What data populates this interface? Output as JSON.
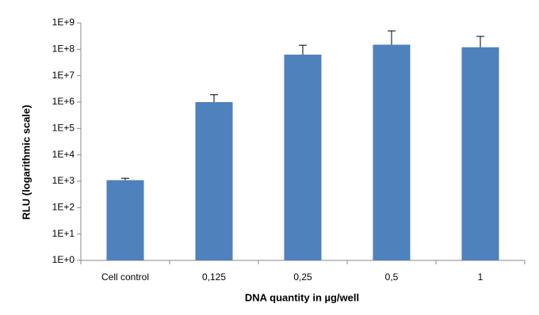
{
  "chart_data": {
    "type": "bar",
    "x_label": "DNA quantity in µg/well",
    "y_label": "RLU (logarithmic scale)",
    "categories": [
      "Cell control",
      "0,125",
      "0,25",
      "0,5",
      "1"
    ],
    "values": [
      1100,
      1000000,
      63000000,
      150000000,
      120000000
    ],
    "errors": [
      200,
      900000,
      80000000,
      350000000,
      190000000
    ],
    "color": "#4f81bd",
    "log_scale": true,
    "grid": false,
    "ylim": [
      1,
      1000000000
    ],
    "yticks": [
      {
        "value": 1,
        "label": "1E+0"
      },
      {
        "value": 10,
        "label": "1E+1"
      },
      {
        "value": 100,
        "label": "1E+2"
      },
      {
        "value": 1000,
        "label": "1E+3"
      },
      {
        "value": 10000,
        "label": "1E+4"
      },
      {
        "value": 100000,
        "label": "1E+5"
      },
      {
        "value": 1000000,
        "label": "1E+6"
      },
      {
        "value": 10000000,
        "label": "1E+7"
      },
      {
        "value": 100000000,
        "label": "1E+8"
      },
      {
        "value": 1000000000,
        "label": "1E+9"
      }
    ]
  }
}
